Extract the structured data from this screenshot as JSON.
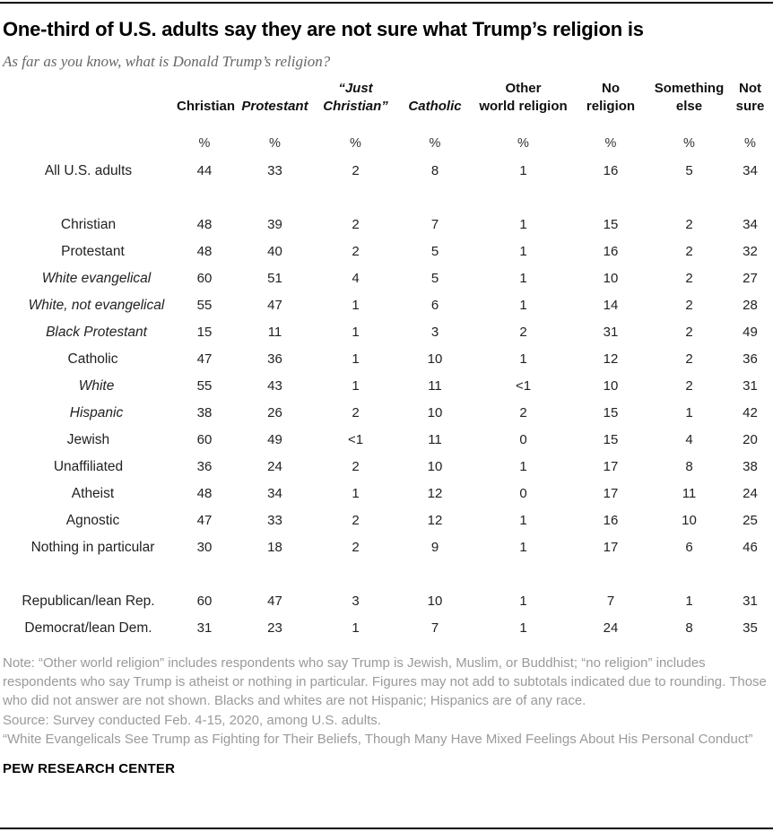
{
  "header": {
    "title": "One-third of U.S. adults say they are not sure what Trump’s religion is",
    "subtitle": "As far as you know, what is Donald Trump’s religion?"
  },
  "chart_data": {
    "type": "table",
    "title": "One-third of U.S. adults say they are not sure what Trump’s religion is",
    "subtitle": "As far as you know, what is Donald Trump’s religion?",
    "unit": "%",
    "columns": [
      {
        "label": "Christian",
        "lines": [
          "Christian"
        ],
        "italic": false
      },
      {
        "label": "Protestant",
        "lines": [
          "Protestant"
        ],
        "italic": true
      },
      {
        "label": "“Just Christian”",
        "lines": [
          "“Just",
          "Christian”"
        ],
        "italic": true
      },
      {
        "label": "Catholic",
        "lines": [
          "Catholic"
        ],
        "italic": true
      },
      {
        "label": "Other world religion",
        "lines": [
          "Other",
          "world religion"
        ],
        "italic": false
      },
      {
        "label": "No religion",
        "lines": [
          "No",
          "religion"
        ],
        "italic": false
      },
      {
        "label": "Something else",
        "lines": [
          "Something",
          "else"
        ],
        "italic": false
      },
      {
        "label": "Not sure",
        "lines": [
          "Not",
          "sure"
        ],
        "italic": false
      }
    ],
    "rows": [
      {
        "label": "All U.S. adults",
        "indent": 0,
        "italic": false,
        "values": [
          "44",
          "33",
          "2",
          "8",
          "1",
          "16",
          "5",
          "34"
        ]
      },
      {
        "spacer": true
      },
      {
        "label": "Christian",
        "indent": 0,
        "italic": false,
        "values": [
          "48",
          "39",
          "2",
          "7",
          "1",
          "15",
          "2",
          "34"
        ]
      },
      {
        "label": "Protestant",
        "indent": 1,
        "italic": false,
        "values": [
          "48",
          "40",
          "2",
          "5",
          "1",
          "16",
          "2",
          "32"
        ]
      },
      {
        "label": "White evangelical",
        "indent": 2,
        "italic": true,
        "values": [
          "60",
          "51",
          "4",
          "5",
          "1",
          "10",
          "2",
          "27"
        ]
      },
      {
        "label": "White, not evangelical",
        "indent": 2,
        "italic": true,
        "values": [
          "55",
          "47",
          "1",
          "6",
          "1",
          "14",
          "2",
          "28"
        ]
      },
      {
        "label": "Black Protestant",
        "indent": 2,
        "italic": true,
        "values": [
          "15",
          "11",
          "1",
          "3",
          "2",
          "31",
          "2",
          "49"
        ]
      },
      {
        "label": "Catholic",
        "indent": 1,
        "italic": false,
        "values": [
          "47",
          "36",
          "1",
          "10",
          "1",
          "12",
          "2",
          "36"
        ]
      },
      {
        "label": "White",
        "indent": 2,
        "italic": true,
        "values": [
          "55",
          "43",
          "1",
          "11",
          "<1",
          "10",
          "2",
          "31"
        ]
      },
      {
        "label": "Hispanic",
        "indent": 2,
        "italic": true,
        "values": [
          "38",
          "26",
          "2",
          "10",
          "2",
          "15",
          "1",
          "42"
        ]
      },
      {
        "label": "Jewish",
        "indent": 0,
        "italic": false,
        "values": [
          "60",
          "49",
          "<1",
          "11",
          "0",
          "15",
          "4",
          "20"
        ]
      },
      {
        "label": "Unaffiliated",
        "indent": 0,
        "italic": false,
        "values": [
          "36",
          "24",
          "2",
          "10",
          "1",
          "17",
          "8",
          "38"
        ]
      },
      {
        "label": "Atheist",
        "indent": 1,
        "italic": false,
        "values": [
          "48",
          "34",
          "1",
          "12",
          "0",
          "17",
          "11",
          "24"
        ]
      },
      {
        "label": "Agnostic",
        "indent": 1,
        "italic": false,
        "values": [
          "47",
          "33",
          "2",
          "12",
          "1",
          "16",
          "10",
          "25"
        ]
      },
      {
        "label": "Nothing in particular",
        "indent": 1,
        "italic": false,
        "values": [
          "30",
          "18",
          "2",
          "9",
          "1",
          "17",
          "6",
          "46"
        ]
      },
      {
        "spacer": true
      },
      {
        "label": "Republican/lean Rep.",
        "indent": 0,
        "italic": false,
        "values": [
          "60",
          "47",
          "3",
          "10",
          "1",
          "7",
          "1",
          "31"
        ]
      },
      {
        "label": "Democrat/lean Dem.",
        "indent": 0,
        "italic": false,
        "values": [
          "31",
          "23",
          "1",
          "7",
          "1",
          "24",
          "8",
          "35"
        ]
      }
    ]
  },
  "footer": {
    "note": "Note: “Other world religion” includes respondents who say Trump is Jewish, Muslim, or Buddhist; “no religion” includes respondents who say Trump is atheist or nothing in particular. Figures may not add to subtotals indicated due to rounding. Those who did not answer are not shown. Blacks and whites are not Hispanic; Hispanics are of any race.",
    "source": "Source: Survey conducted Feb. 4-15, 2020, among U.S. adults.",
    "report": "“White Evangelicals See Trump as Fighting for Their Beliefs, Though Many Have Mixed Feelings About His Personal Conduct”",
    "brand": "PEW RESEARCH CENTER"
  },
  "colors": {
    "title": "#000000",
    "subtitle": "#666666",
    "table_text": "#222222",
    "note_text": "#9a9a9a",
    "rule": "#000000"
  }
}
